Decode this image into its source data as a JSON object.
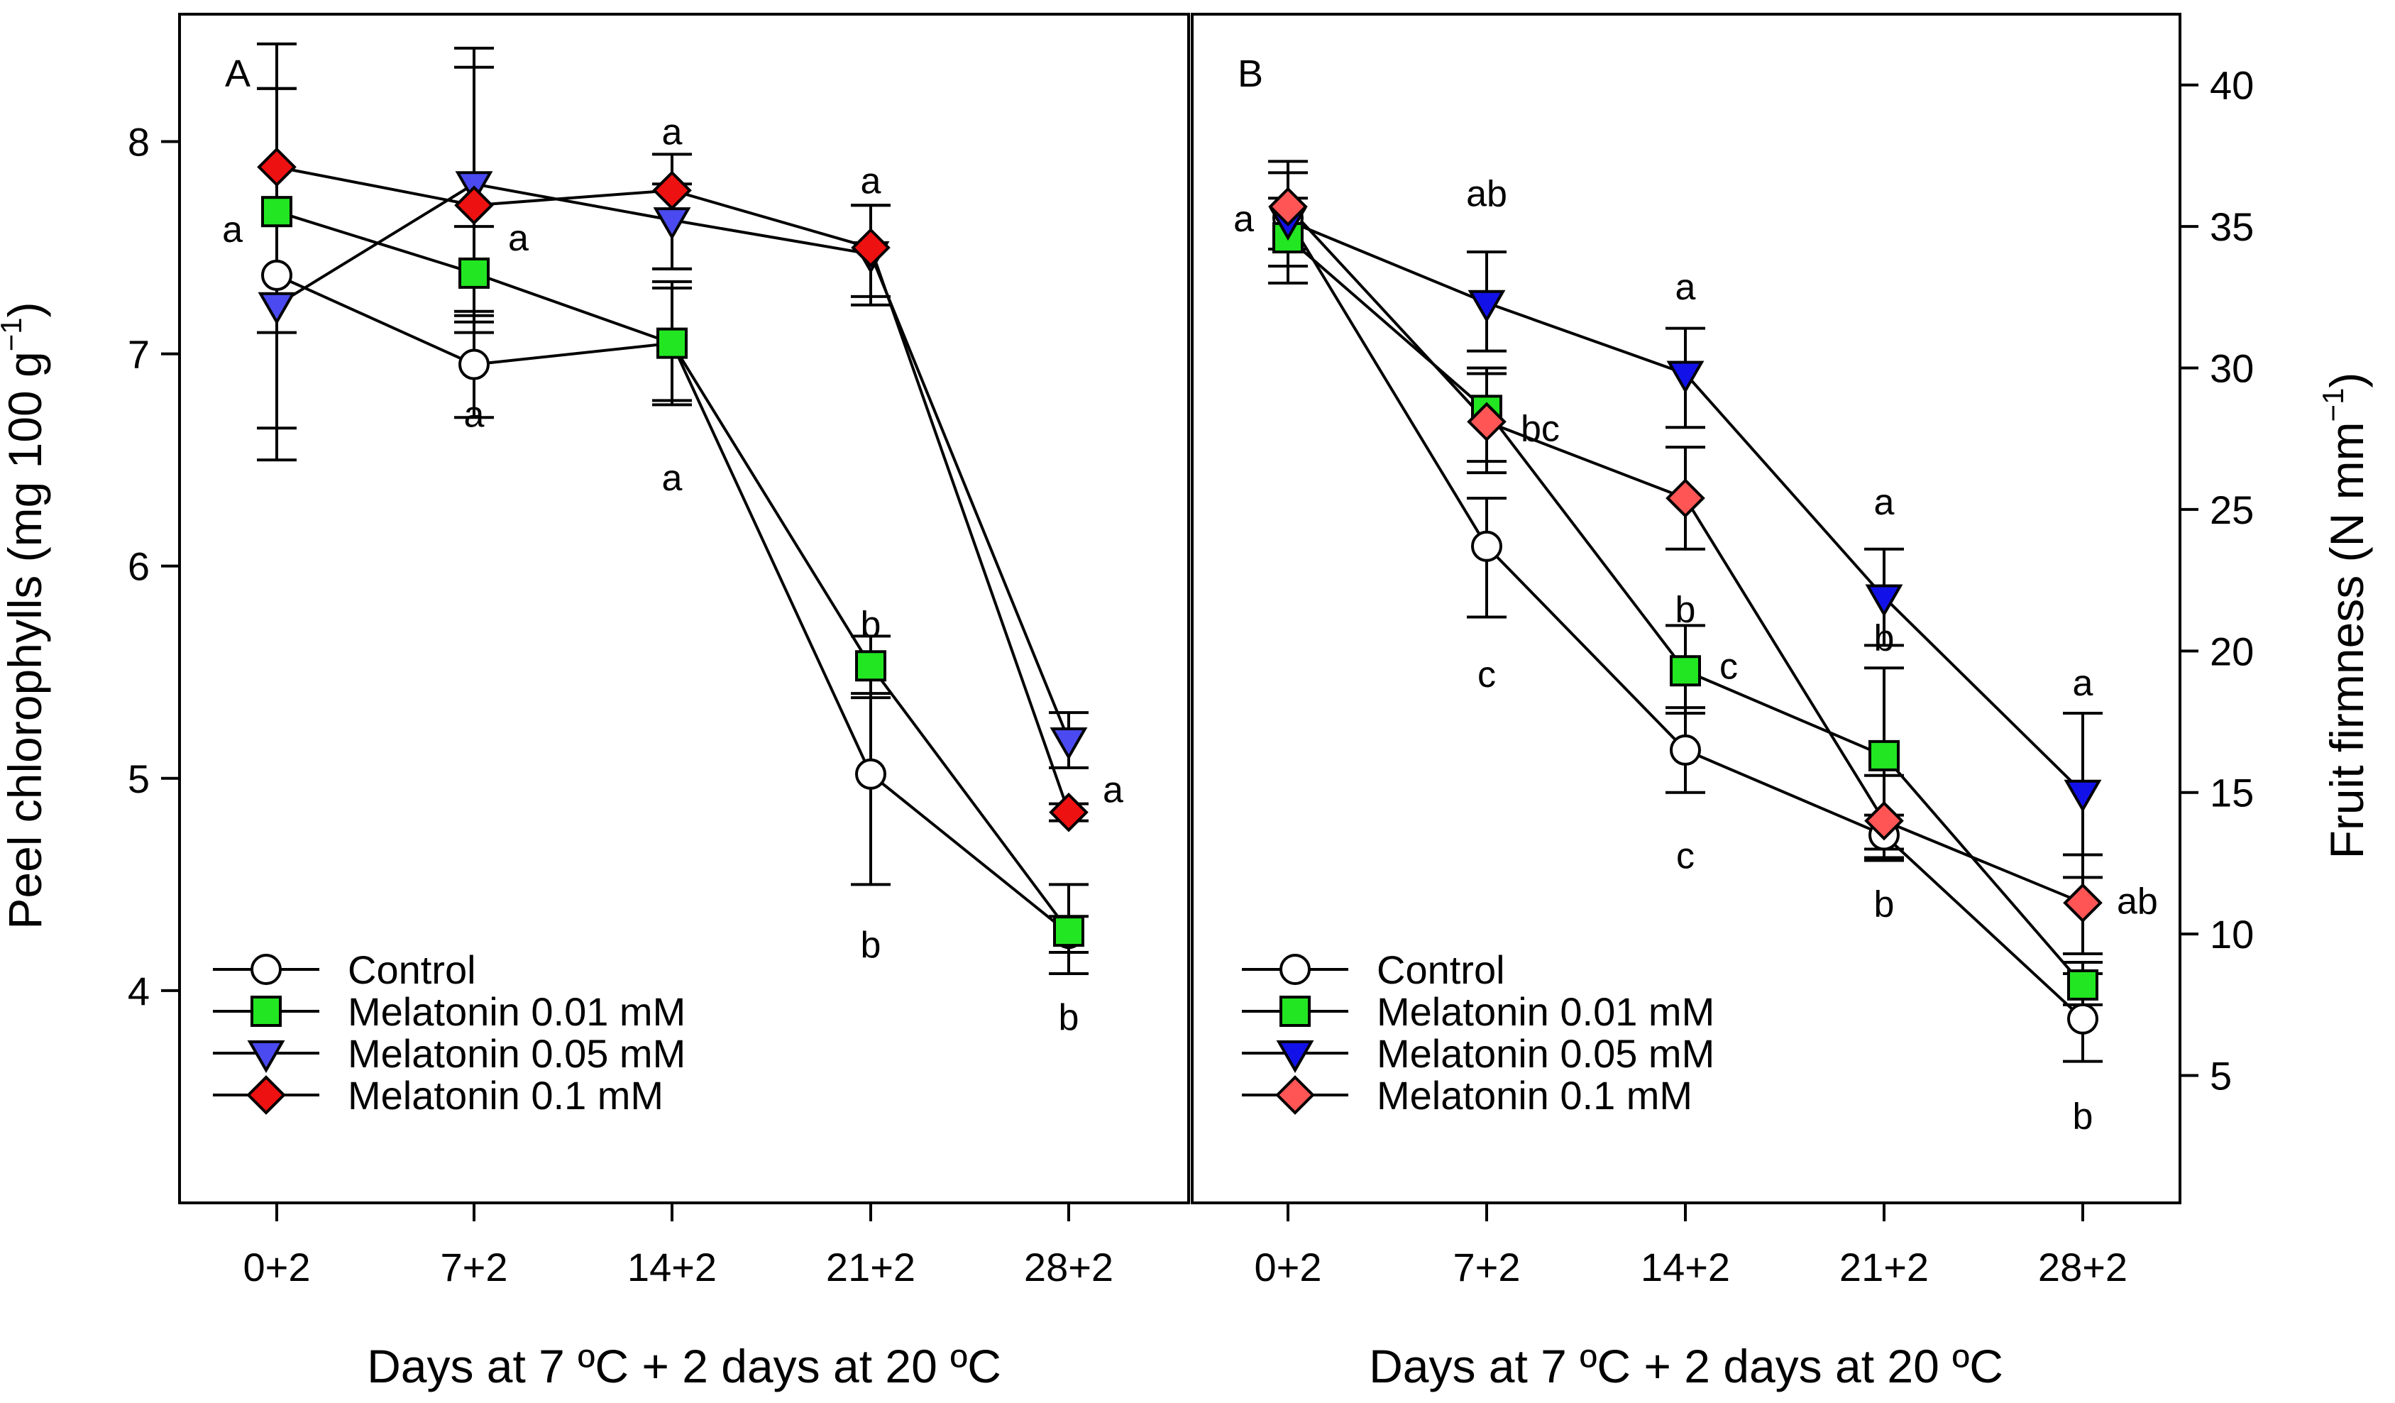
{
  "chart_data": [
    {
      "type": "line",
      "panel": "A",
      "xlabel": "Days at 7 ºC + 2 days at 20 ºC",
      "ylabel": "Peel chlorophylls (mg 100 g",
      "ylabel_sup": "−1",
      "ylabel_close": ")",
      "ylim": [
        3.0,
        8.6
      ],
      "yticks": [
        4,
        5,
        6,
        7,
        8
      ],
      "categories": [
        "0+2",
        "7+2",
        "14+2",
        "21+2",
        "28+2"
      ],
      "series": [
        {
          "name": "Control",
          "marker": "circle",
          "color": "#ffffff",
          "values": [
            7.37,
            6.95,
            7.05,
            5.02,
            4.27
          ],
          "err_lo": [
            6.65,
            6.7,
            6.76,
            4.5,
            4.08
          ],
          "err_hi": [
            8.25,
            7.18,
            7.34,
            5.4,
            4.5
          ]
        },
        {
          "name": "Melatonin 0.01 mM",
          "marker": "square",
          "color": "#22e622",
          "values": [
            7.67,
            7.38,
            7.05,
            5.53,
            4.28
          ],
          "err_lo": [
            7.67,
            7.1,
            6.78,
            5.38,
            4.18
          ],
          "err_hi": [
            7.67,
            7.6,
            7.31,
            5.67,
            4.35
          ]
        },
        {
          "name": "Melatonin 0.05 mM",
          "marker": "triangle-down",
          "color": "#4a4af0",
          "values": [
            7.23,
            7.8,
            7.63,
            7.47,
            5.18
          ],
          "err_lo": [
            6.5,
            7.15,
            7.4,
            7.23,
            5.05
          ],
          "err_hi": [
            8.46,
            8.44,
            7.8,
            7.7,
            5.31
          ]
        },
        {
          "name": "Melatonin 0.1 mM",
          "marker": "diamond",
          "color": "#ee1111",
          "values": [
            7.88,
            7.7,
            7.77,
            7.5,
            4.84
          ],
          "err_lo": [
            7.1,
            7.2,
            7.4,
            7.27,
            4.8
          ],
          "err_hi": [
            8.25,
            8.35,
            7.94,
            7.7,
            4.88
          ]
        }
      ],
      "annotations": [
        {
          "text": "a",
          "x": "0+2",
          "y": 7.59,
          "anchor": "left"
        },
        {
          "text": "a",
          "x": "7+2",
          "y": 6.72,
          "anchor": "center"
        },
        {
          "text": "a",
          "x": "7+2",
          "y": 7.55,
          "anchor": "right"
        },
        {
          "text": "a",
          "x": "14+2",
          "y": 8.05,
          "anchor": "center"
        },
        {
          "text": "a",
          "x": "14+2",
          "y": 6.42,
          "anchor": "center"
        },
        {
          "text": "a",
          "x": "21+2",
          "y": 7.82,
          "anchor": "center"
        },
        {
          "text": "b",
          "x": "21+2",
          "y": 5.73,
          "anchor": "center"
        },
        {
          "text": "b",
          "x": "21+2",
          "y": 4.22,
          "anchor": "center"
        },
        {
          "text": "a",
          "x": "28+2",
          "y": 4.95,
          "anchor": "right"
        },
        {
          "text": "b",
          "x": "28+2",
          "y": 3.88,
          "anchor": "center"
        }
      ],
      "legend_position": "bottom-left"
    },
    {
      "type": "line",
      "panel": "B",
      "xlabel": "Days at 7 ºC + 2 days at 20 ºC",
      "ylabel": "Fruit firmness (N mm",
      "ylabel_sup": "−1",
      "ylabel_close": ")",
      "ylim": [
        0.5,
        42.5
      ],
      "yticks": [
        5,
        10,
        15,
        20,
        25,
        30,
        35,
        40
      ],
      "categories": [
        "0+2",
        "7+2",
        "14+2",
        "21+2",
        "28+2"
      ],
      "series": [
        {
          "name": "Control",
          "marker": "circle",
          "color": "#ffffff",
          "values": [
            35.3,
            23.7,
            16.5,
            13.5,
            7.0
          ],
          "err_lo": [
            33.0,
            21.2,
            15.0,
            12.6,
            5.5
          ],
          "err_hi": [
            36.0,
            25.4,
            18.0,
            14.2,
            8.6
          ]
        },
        {
          "name": "Melatonin 0.01 mM",
          "marker": "square",
          "color": "#22e622",
          "values": [
            34.6,
            28.5,
            19.3,
            16.3,
            8.2
          ],
          "err_lo": [
            34.6,
            26.7,
            17.8,
            13.0,
            7.5
          ],
          "err_hi": [
            34.6,
            30.0,
            20.9,
            19.4,
            9.0
          ]
        },
        {
          "name": "Melatonin 0.05 mM",
          "marker": "triangle-down",
          "color": "#1212e8",
          "values": [
            35.2,
            32.3,
            29.8,
            21.9,
            15.0
          ],
          "err_lo": [
            33.6,
            30.6,
            27.9,
            20.2,
            12.0
          ],
          "err_hi": [
            36.9,
            34.1,
            31.4,
            23.6,
            17.8
          ]
        },
        {
          "name": "Melatonin 0.1 mM",
          "marker": "diamond",
          "color": "#ff5555",
          "values": [
            35.7,
            28.1,
            25.4,
            14.0,
            11.1
          ],
          "err_lo": [
            34.2,
            26.3,
            23.6,
            12.7,
            9.3
          ],
          "err_hi": [
            37.3,
            29.8,
            27.2,
            15.6,
            12.8
          ]
        }
      ],
      "annotations": [
        {
          "text": "a",
          "x": "0+2",
          "y": 35.3,
          "anchor": "left"
        },
        {
          "text": "ab",
          "x": "7+2",
          "y": 36.2,
          "anchor": "center"
        },
        {
          "text": "bc",
          "x": "7+2",
          "y": 27.9,
          "anchor": "right"
        },
        {
          "text": "c",
          "x": "7+2",
          "y": 19.2,
          "anchor": "center"
        },
        {
          "text": "a",
          "x": "14+2",
          "y": 32.9,
          "anchor": "center"
        },
        {
          "text": "b",
          "x": "14+2",
          "y": 21.5,
          "anchor": "center"
        },
        {
          "text": "c",
          "x": "14+2",
          "y": 19.5,
          "anchor": "right"
        },
        {
          "text": "c",
          "x": "14+2",
          "y": 12.8,
          "anchor": "center"
        },
        {
          "text": "a",
          "x": "21+2",
          "y": 25.3,
          "anchor": "center"
        },
        {
          "text": "b",
          "x": "21+2",
          "y": 20.5,
          "anchor": "center"
        },
        {
          "text": "b",
          "x": "21+2",
          "y": 11.1,
          "anchor": "center"
        },
        {
          "text": "a",
          "x": "28+2",
          "y": 18.9,
          "anchor": "center"
        },
        {
          "text": "ab",
          "x": "28+2",
          "y": 11.2,
          "anchor": "right"
        },
        {
          "text": "b",
          "x": "28+2",
          "y": 3.6,
          "anchor": "center"
        }
      ],
      "legend_position": "bottom-left"
    }
  ]
}
